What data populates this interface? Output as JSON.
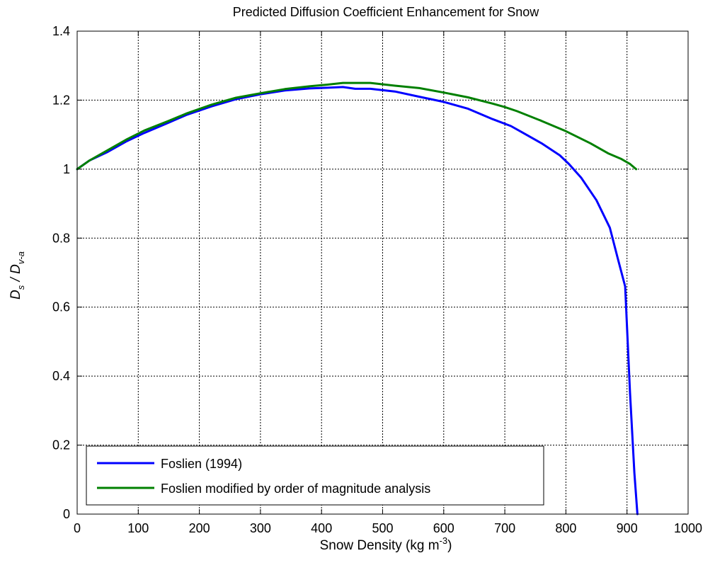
{
  "chart_data": {
    "type": "line",
    "title": "Predicted Diffusion Coefficient Enhancement for Snow",
    "xlabel": "Snow Density (kg m",
    "xlabel_sup": "-3",
    "xlabel_end": ")",
    "ylabel": {
      "numerator": "D",
      "numerator_sub": "s",
      "separator": " / ",
      "denominator": "D",
      "denominator_sub": "v-a"
    },
    "xlim": [
      0,
      1000
    ],
    "ylim": [
      0,
      1.4
    ],
    "xticks": [
      0,
      100,
      200,
      300,
      400,
      500,
      600,
      700,
      800,
      900,
      1000
    ],
    "xtick_labels": [
      "0",
      "100",
      "200",
      "300",
      "400",
      "500",
      "600",
      "700",
      "800",
      "900",
      "1000"
    ],
    "yticks": [
      0,
      0.2,
      0.4,
      0.6,
      0.8,
      1.0,
      1.2,
      1.4
    ],
    "ytick_labels": [
      "0",
      "0.2",
      "0.4",
      "0.6",
      "0.8",
      "1",
      "1.2",
      "1.4"
    ],
    "grid": true,
    "legend_position": "bottom-left",
    "series": [
      {
        "name": "Foslien (1994)",
        "color": "#0000ff",
        "x": [
          0,
          20,
          50,
          80,
          110,
          150,
          180,
          220,
          260,
          300,
          340,
          380,
          410,
          435,
          455,
          480,
          520,
          560,
          600,
          640,
          680,
          710,
          730,
          760,
          790,
          805,
          825,
          850,
          872,
          885,
          897,
          905,
          912,
          917
        ],
        "y": [
          1.0,
          1.025,
          1.05,
          1.08,
          1.105,
          1.135,
          1.158,
          1.182,
          1.203,
          1.217,
          1.228,
          1.234,
          1.236,
          1.238,
          1.233,
          1.233,
          1.225,
          1.21,
          1.195,
          1.175,
          1.145,
          1.125,
          1.105,
          1.075,
          1.04,
          1.015,
          0.975,
          0.91,
          0.83,
          0.74,
          0.66,
          0.35,
          0.12,
          0.0
        ]
      },
      {
        "name": "Foslien modified by order of magnitude analysis",
        "color": "#008000",
        "x": [
          0,
          20,
          50,
          80,
          110,
          150,
          180,
          220,
          260,
          300,
          340,
          380,
          410,
          435,
          460,
          480,
          520,
          560,
          600,
          640,
          680,
          700,
          720,
          760,
          800,
          840,
          870,
          890,
          905,
          915
        ],
        "y": [
          1.0,
          1.025,
          1.055,
          1.085,
          1.112,
          1.14,
          1.162,
          1.187,
          1.207,
          1.22,
          1.232,
          1.24,
          1.245,
          1.25,
          1.25,
          1.25,
          1.242,
          1.235,
          1.222,
          1.208,
          1.19,
          1.18,
          1.168,
          1.14,
          1.11,
          1.075,
          1.045,
          1.03,
          1.015,
          1.0
        ]
      }
    ]
  }
}
